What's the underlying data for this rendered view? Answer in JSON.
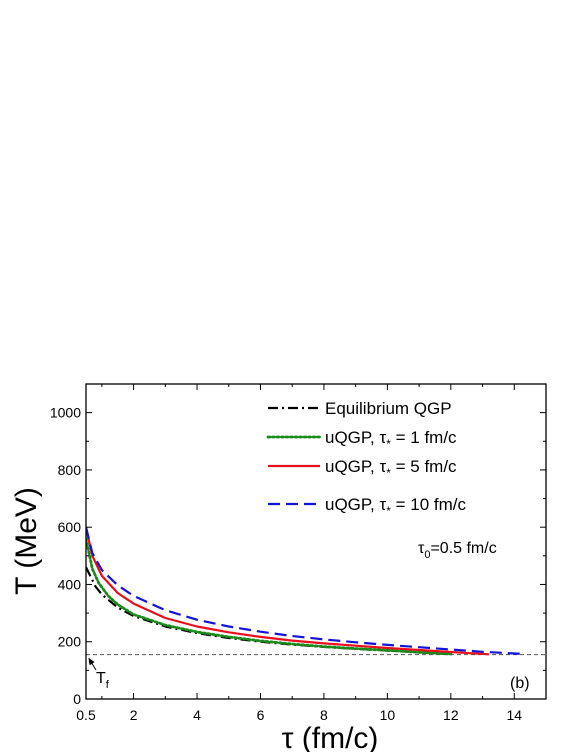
{
  "chart_data": {
    "type": "line",
    "xlabel": "τ (fm/c)",
    "ylabel": "T (MeV)",
    "xlim": [
      0.5,
      15
    ],
    "ylim": [
      0,
      1100
    ],
    "xticks": [
      0.5,
      2,
      4,
      6,
      8,
      10,
      12,
      14
    ],
    "xtick_labels": [
      "0.5",
      "2",
      "4",
      "6",
      "8",
      "10",
      "12",
      "14"
    ],
    "yticks": [
      0,
      200,
      400,
      600,
      800,
      1000
    ],
    "ytick_labels": [
      "0",
      "200",
      "400",
      "600",
      "800",
      "1000"
    ],
    "grid": false,
    "legend_position": "top-right",
    "series": [
      {
        "name": "Equilibrium QGP",
        "color": "#000000",
        "dash": "dashdot",
        "x": [
          0.5,
          0.8,
          1,
          1.5,
          2,
          3,
          4,
          5,
          6,
          7,
          8,
          9,
          10,
          11,
          11.8
        ],
        "y": [
          460,
          393,
          365,
          319,
          290,
          253,
          230,
          213,
          200,
          190,
          182,
          175,
          169,
          163,
          158
        ]
      },
      {
        "name": "uQGP, τ",
        "name_subscript": "*",
        "name_suffix": " = 1 fm/c",
        "color": "#1a8a1a",
        "dash": "dotted",
        "x": [
          0.5,
          0.7,
          0.9,
          1.2,
          1.5,
          2,
          3,
          4,
          5,
          6,
          7,
          8,
          9,
          10,
          11,
          12
        ],
        "y": [
          560,
          455,
          405,
          360,
          330,
          295,
          258,
          234,
          217,
          203,
          192,
          183,
          176,
          170,
          163,
          157
        ]
      },
      {
        "name": "uQGP, τ",
        "name_subscript": "*",
        "name_suffix": " = 5 fm/c",
        "color": "#e8101c",
        "dash": "solid",
        "x": [
          0.5,
          0.7,
          1,
          1.5,
          2,
          3,
          4,
          5,
          6,
          7,
          8,
          9,
          10,
          11,
          12,
          13.2
        ],
        "y": [
          600,
          500,
          430,
          370,
          333,
          283,
          253,
          233,
          217,
          204,
          194,
          186,
          178,
          171,
          164,
          156
        ]
      },
      {
        "name": "uQGP, τ",
        "name_subscript": "*",
        "name_suffix": " = 10 fm/c",
        "color": "#1414d6",
        "dash": "dashed",
        "x": [
          0.5,
          0.7,
          1,
          1.5,
          2,
          3,
          4,
          5,
          6,
          7,
          8,
          9,
          10,
          11,
          12,
          13,
          14.3
        ],
        "y": [
          600,
          510,
          450,
          397,
          360,
          310,
          277,
          253,
          235,
          220,
          208,
          198,
          189,
          181,
          173,
          165,
          157
        ]
      }
    ],
    "reference_line": {
      "y": 155,
      "color": "#555555",
      "dash": "dashed"
    },
    "annotations": {
      "tau0_symbol": "τ",
      "tau0_subscript": "0",
      "tau0_rest": "=0.5 fm/c",
      "tf_symbol": "T",
      "tf_subscript": "f",
      "tf_arrow_target": {
        "x": 0.5,
        "y": 155
      },
      "panel_label": "(b)"
    }
  }
}
